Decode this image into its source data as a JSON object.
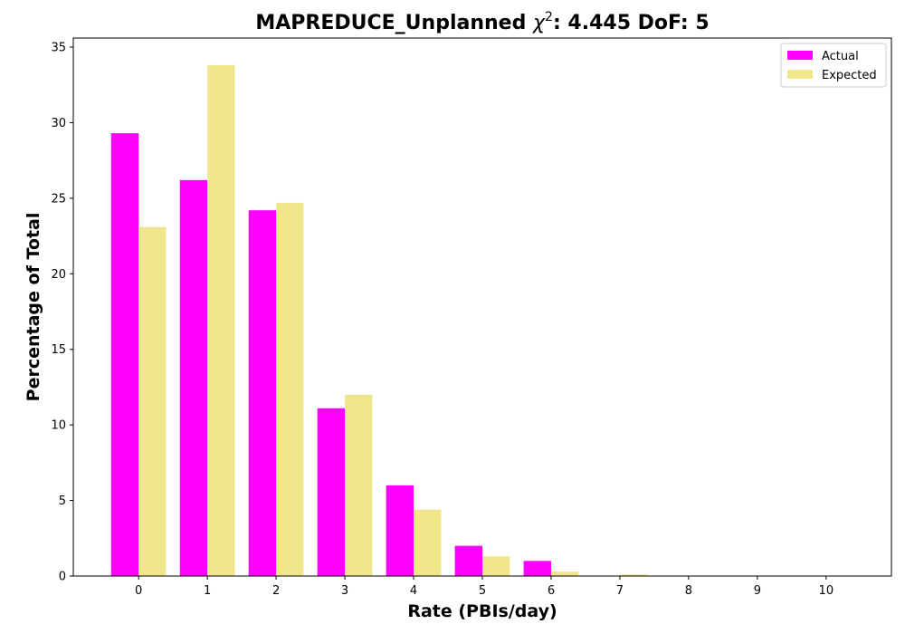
{
  "chart_data": {
    "type": "bar",
    "title": "MAPREDUCE_Unplanned χ²: 4.445 DoF: 5",
    "title_parts": {
      "prefix": "MAPREDUCE_Unplanned ",
      "chi": "χ",
      "sup": "2",
      "suffix": ": 4.445 DoF: 5"
    },
    "xlabel": "Rate (PBIs/day)",
    "ylabel": "Percentage of Total",
    "categories": [
      "0",
      "1",
      "2",
      "3",
      "4",
      "5",
      "6",
      "7",
      "8",
      "9",
      "10"
    ],
    "series": [
      {
        "name": "Actual",
        "color": "#ff00ff",
        "values": [
          29.3,
          26.2,
          24.2,
          11.1,
          6.0,
          2.0,
          1.0,
          0,
          0,
          0,
          0
        ]
      },
      {
        "name": "Expected",
        "color": "#f0e68c",
        "values": [
          23.1,
          33.8,
          24.7,
          12.0,
          4.4,
          1.3,
          0.3,
          0.1,
          0,
          0,
          0
        ]
      }
    ],
    "ylim": [
      0,
      35.6
    ],
    "xlim": [
      -0.95,
      10.95
    ],
    "yticks": [
      0,
      5,
      10,
      15,
      20,
      25,
      30,
      35
    ],
    "grid": false,
    "legend_position": "top-right"
  }
}
